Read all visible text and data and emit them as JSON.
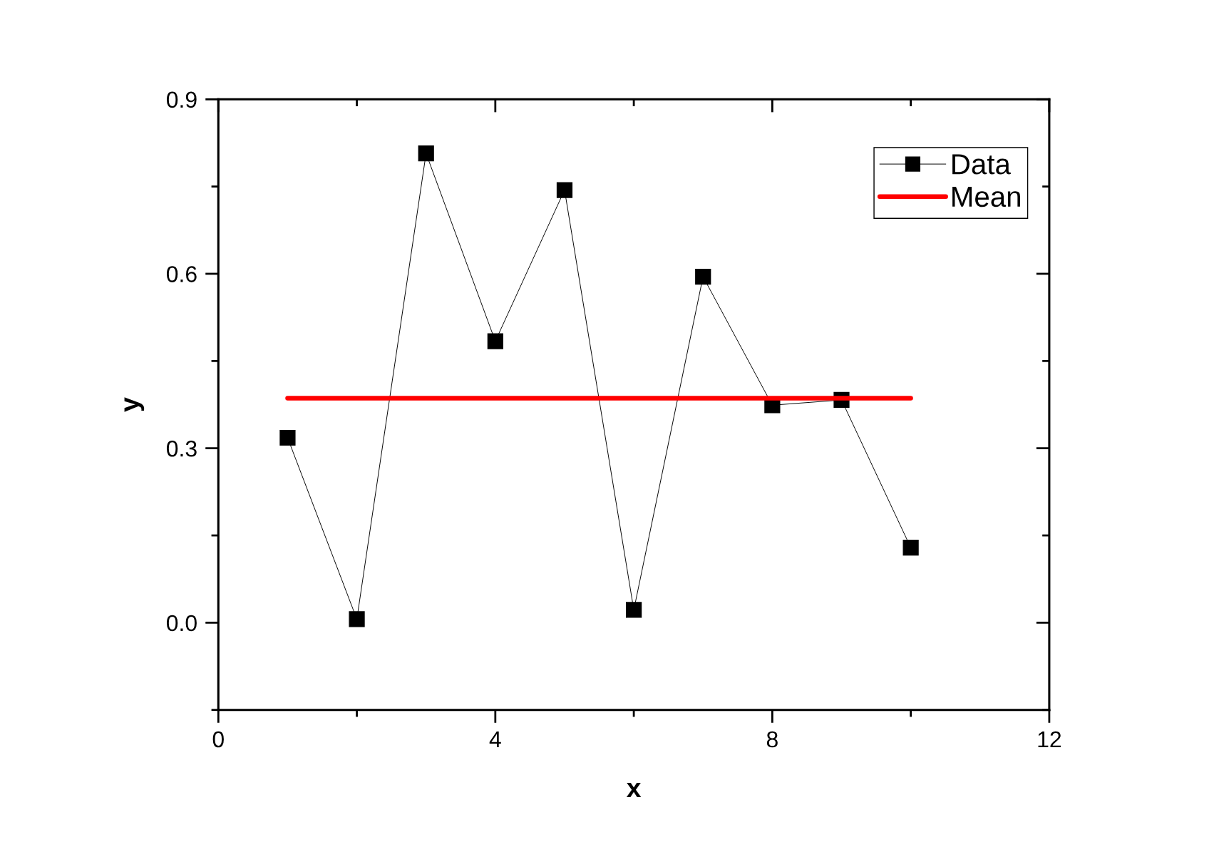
{
  "chart_data": {
    "type": "line",
    "xlabel": "x",
    "ylabel": "y",
    "xlim": [
      0,
      12
    ],
    "xticks": [
      0,
      {
        "value": 2,
        "label": null
      },
      4,
      {
        "value": 6,
        "label": null
      },
      8,
      {
        "value": 10,
        "label": null
      },
      12
    ],
    "ylim": [
      -0.15,
      0.9
    ],
    "yticks": [
      {
        "value": -0.15,
        "label": null
      },
      {
        "value": 0.0,
        "label": "0.0"
      },
      {
        "value": 0.15,
        "label": null
      },
      {
        "value": 0.3,
        "label": "0.3"
      },
      {
        "value": 0.45,
        "label": null
      },
      {
        "value": 0.6,
        "label": "0.6"
      },
      {
        "value": 0.75,
        "label": null
      },
      {
        "value": 0.9,
        "label": "0.9"
      }
    ],
    "legend": "top right",
    "series": [
      {
        "name": "Data",
        "color": "#000000",
        "marker": "square",
        "line_style": "solid",
        "x": [
          1,
          2,
          3,
          4,
          5,
          6,
          7,
          8,
          9,
          10
        ],
        "values": [
          0.318,
          0.006,
          0.807,
          0.484,
          0.744,
          0.022,
          0.595,
          0.374,
          0.383,
          0.129
        ]
      },
      {
        "name": "Mean",
        "color": "#ff0000",
        "marker": "none",
        "line_style": "solid",
        "x": [
          1,
          10
        ],
        "values": [
          0.386,
          0.386
        ]
      }
    ]
  }
}
